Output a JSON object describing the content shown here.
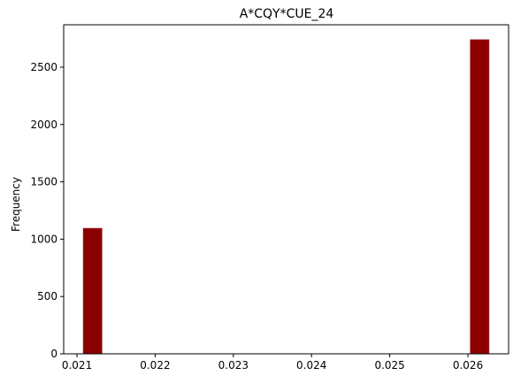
{
  "chart_data": {
    "type": "bar",
    "title": "A*CQY*CUE_24",
    "xlabel": "",
    "ylabel": "Frequency",
    "bars": [
      {
        "x_start": 0.02108,
        "x_end": 0.02132,
        "value": 1095
      },
      {
        "x_start": 0.02603,
        "x_end": 0.02627,
        "value": 2740
      }
    ],
    "xlim": [
      0.02083,
      0.02652
    ],
    "ylim": [
      0,
      2870
    ],
    "xticks": [
      "0.021",
      "0.022",
      "0.023",
      "0.024",
      "0.025",
      "0.026"
    ],
    "xtick_values": [
      0.021,
      0.022,
      0.023,
      0.024,
      0.025,
      0.026
    ],
    "yticks": [
      "0",
      "500",
      "1000",
      "1500",
      "2000",
      "2500"
    ],
    "ytick_values": [
      0,
      500,
      1000,
      1500,
      2000,
      2500
    ],
    "bar_color": "#8b0000",
    "grid": false,
    "legend": "none"
  }
}
